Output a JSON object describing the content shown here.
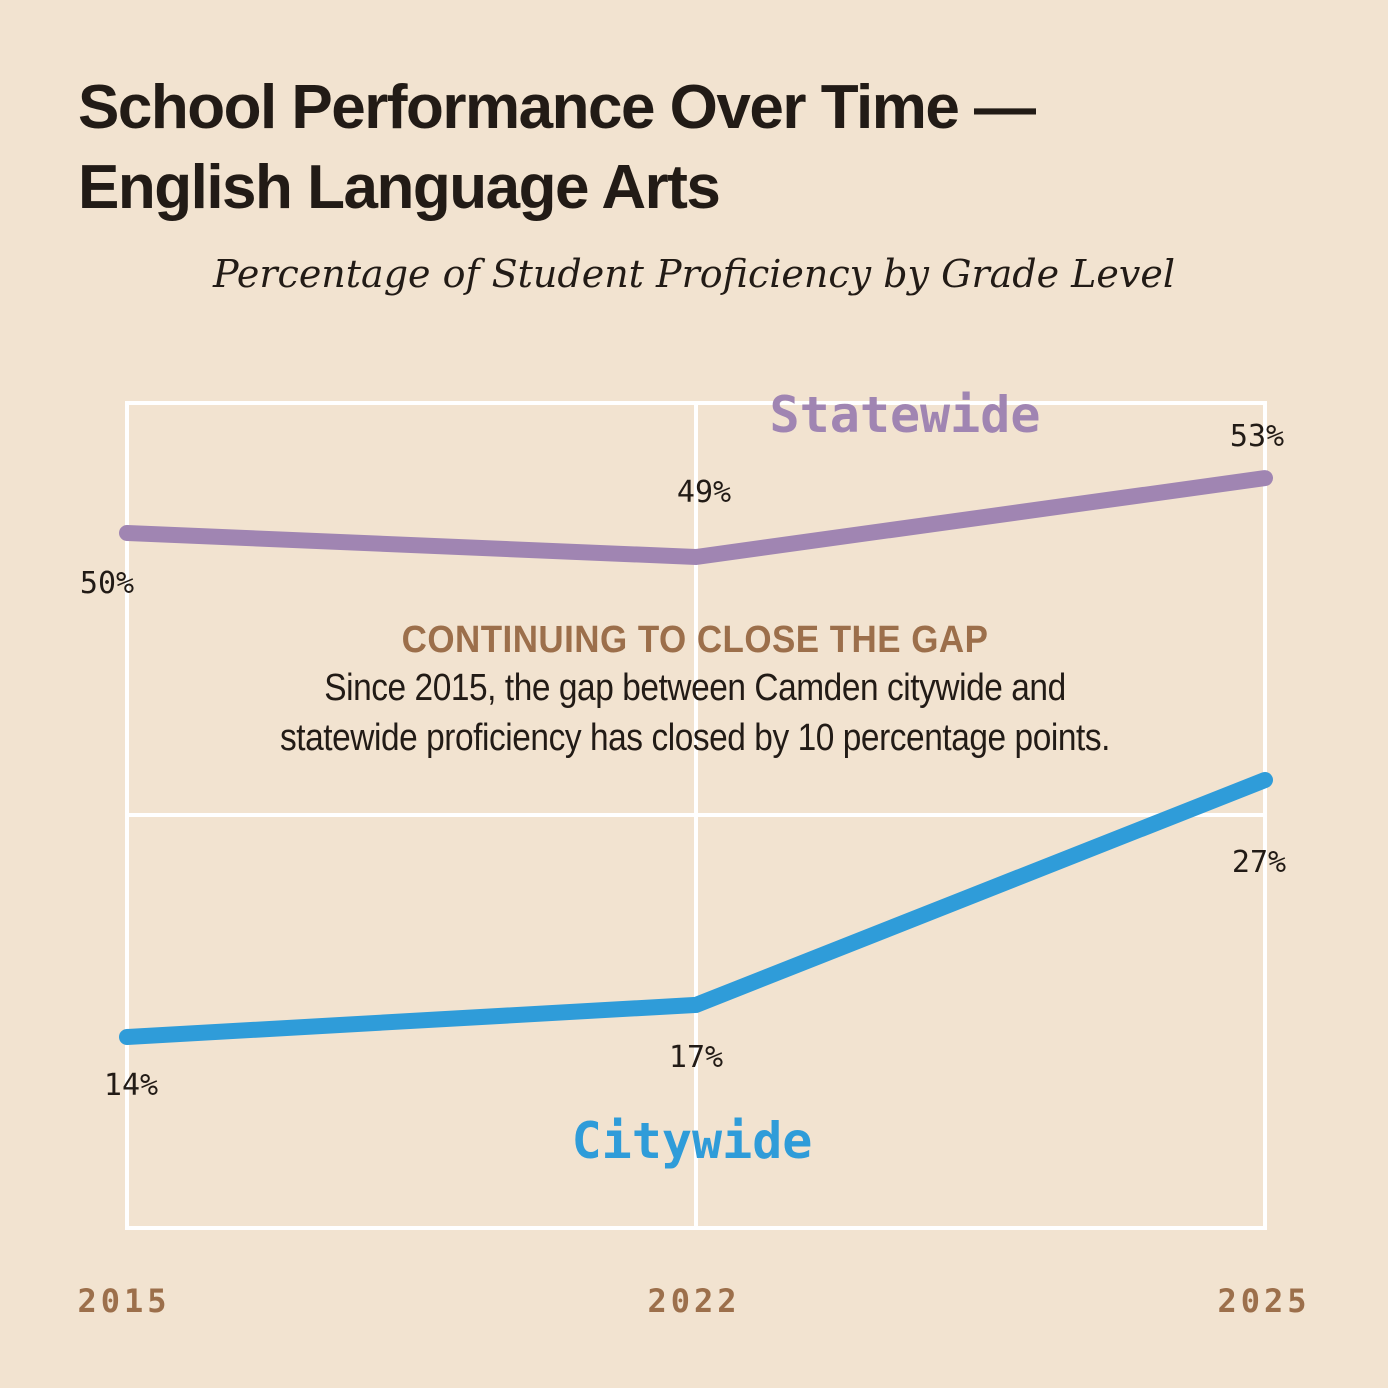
{
  "title_line1": "School Performance Over Time —",
  "title_line2": "English Language Arts",
  "subtitle": "Percentage of Student Proficiency by Grade Level",
  "annotation": {
    "heading": "CONTINUING TO CLOSE THE GAP",
    "body_line1": "Since 2015, the gap between Camden citywide and",
    "body_line2": "statewide proficiency has closed by 10 percentage points."
  },
  "colors": {
    "background": "#f2e3d0",
    "statewide": "#a085b2",
    "citywide": "#2f9cd9",
    "axis_label": "#9c6f4b",
    "text": "#221b16",
    "grid": "#ffffff"
  },
  "chart_data": {
    "type": "line",
    "title": "School Performance Over Time — English Language Arts",
    "subtitle": "Percentage of Student Proficiency by Grade Level",
    "x": [
      "2015",
      "2022",
      "2025"
    ],
    "xlabel": "",
    "ylabel": "",
    "grid": true,
    "series": [
      {
        "name": "Statewide",
        "values": [
          50,
          49,
          53
        ],
        "labels": [
          "50%",
          "49%",
          "53%"
        ]
      },
      {
        "name": "Citywide",
        "values": [
          14,
          17,
          27
        ],
        "labels": [
          "14%",
          "17%",
          "27%"
        ]
      }
    ]
  }
}
